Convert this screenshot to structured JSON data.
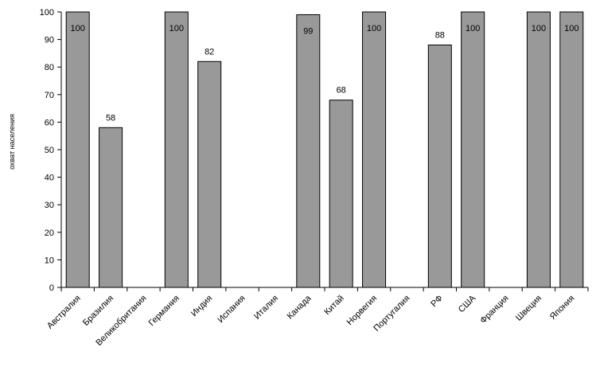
{
  "chart_data": {
    "type": "bar",
    "title": "",
    "xlabel": "",
    "ylabel": "охват населения",
    "ylim": [
      0,
      100
    ],
    "yticks": [
      0,
      10,
      20,
      30,
      40,
      50,
      60,
      70,
      80,
      90,
      100
    ],
    "grid": false,
    "bar_color": "#999999",
    "categories": [
      "Австралия",
      "Бразилия",
      "Великобритания",
      "Германия",
      "Индия",
      "Испания",
      "Италия",
      "Канада",
      "Китай",
      "Норвегия",
      "Португалия",
      "РФ",
      "США",
      "Франция",
      "Швеция",
      "Япония"
    ],
    "values": [
      100,
      58,
      null,
      100,
      82,
      null,
      null,
      99,
      68,
      100,
      null,
      88,
      100,
      null,
      100,
      100
    ],
    "data_labels": [
      "100",
      "58",
      "",
      "100",
      "82",
      "",
      "",
      "99",
      "68",
      "100",
      "",
      "88",
      "100",
      "",
      "100",
      "100"
    ]
  }
}
